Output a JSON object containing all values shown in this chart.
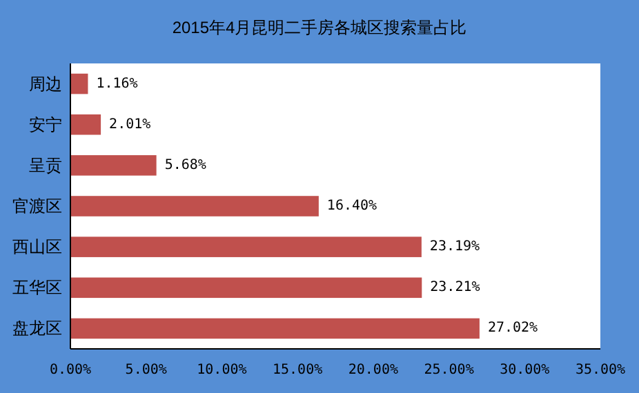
{
  "chart_data": {
    "type": "bar",
    "orientation": "horizontal",
    "title": "2015年4月昆明二手房各城区搜索量占比",
    "categories": [
      "周边",
      "安宁",
      "呈贡",
      "官渡区",
      "西山区",
      "五华区",
      "盘龙区"
    ],
    "values": [
      1.16,
      2.01,
      5.68,
      16.4,
      23.19,
      23.21,
      27.02
    ],
    "value_labels": [
      "1.16%",
      "2.01%",
      "5.68%",
      "16.40%",
      "23.19%",
      "23.21%",
      "27.02%"
    ],
    "color": "#c0504d",
    "xlim": [
      0,
      35
    ],
    "xticks": [
      {
        "value": 0,
        "label": "0.00%"
      },
      {
        "value": 5,
        "label": "5.00%"
      },
      {
        "value": 10,
        "label": "10.00%"
      },
      {
        "value": 15,
        "label": "15.00%"
      },
      {
        "value": 20,
        "label": "20.00%"
      },
      {
        "value": 25,
        "label": "25.00%"
      },
      {
        "value": 30,
        "label": "30.00%"
      },
      {
        "value": 35,
        "label": "35.00%"
      }
    ],
    "grid": false
  }
}
